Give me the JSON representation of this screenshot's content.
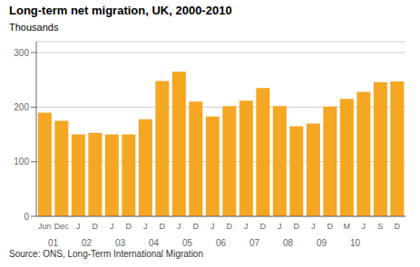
{
  "chart_data": {
    "type": "bar",
    "title": "Long-term net migration, UK, 2000-2010",
    "ylabel": "Thousands",
    "source": "Source: ONS, Long-Term International Migration",
    "categories": [
      "Jun",
      "Dec",
      "J",
      "D",
      "J",
      "D",
      "J",
      "D",
      "J",
      "D",
      "J",
      "D",
      "J",
      "D",
      "J",
      "D",
      "J",
      "D",
      "M",
      "J",
      "S",
      "D"
    ],
    "values": [
      190,
      175,
      150,
      153,
      150,
      150,
      178,
      248,
      265,
      210,
      183,
      202,
      212,
      235,
      202,
      165,
      170,
      201,
      215,
      228,
      246,
      247
    ],
    "color": "#F5A623",
    "ylim": [
      0,
      320
    ],
    "yticks": [
      0,
      100,
      200,
      300
    ],
    "grid": true,
    "annotations": [
      {
        "text": "01",
        "x": 0.5
      },
      {
        "text": "02",
        "x": 2.5
      },
      {
        "text": "03",
        "x": 4.5
      },
      {
        "text": "04",
        "x": 6.5
      },
      {
        "text": "05",
        "x": 8.5
      },
      {
        "text": "06",
        "x": 10.5
      },
      {
        "text": "07",
        "x": 12.5
      },
      {
        "text": "08",
        "x": 14.5
      },
      {
        "text": "09",
        "x": 16.5
      },
      {
        "text": "10",
        "x": 18.5
      }
    ]
  }
}
